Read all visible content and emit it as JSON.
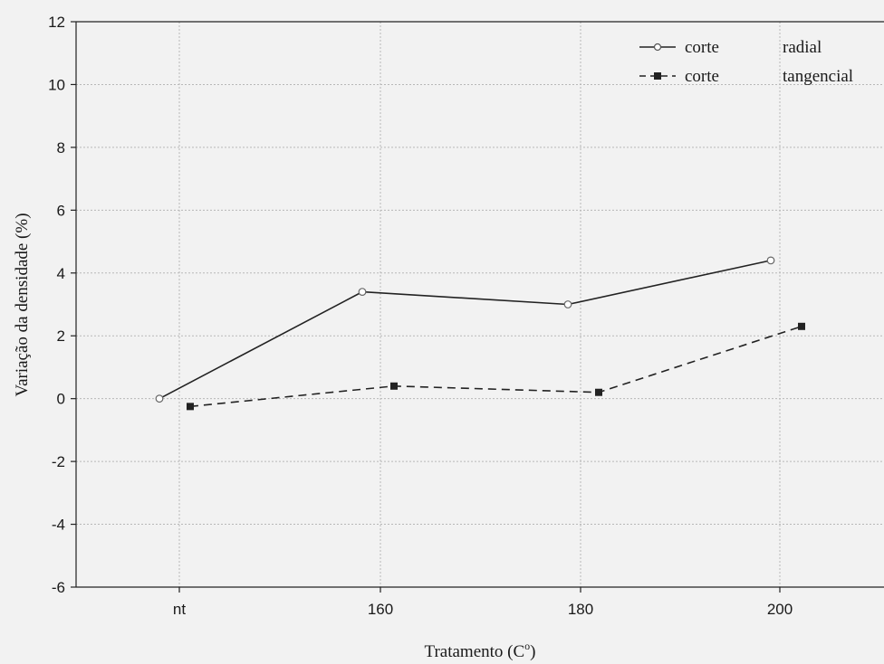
{
  "chart_data": {
    "type": "line",
    "xlabel": "Tratamento (C",
    "xlabel_sup": "o",
    "xlabel_close": ")",
    "ylabel": "Variação da densidade (%)",
    "ylim": [
      -6,
      12
    ],
    "yticks": [
      -6,
      -4,
      -2,
      0,
      2,
      4,
      6,
      8,
      10,
      12
    ],
    "categories": [
      "nt",
      "160",
      "180",
      "200"
    ],
    "grid": true,
    "legend": "top-right",
    "series": [
      {
        "name_left": "corte",
        "name_right": "radial",
        "style": "solid",
        "marker": "circle",
        "color": "#222222",
        "values": [
          0.0,
          3.4,
          3.0,
          4.4
        ]
      },
      {
        "name_left": "corte",
        "name_right": "tangencial",
        "style": "dashed",
        "marker": "square",
        "color": "#222222",
        "values": [
          -0.25,
          0.4,
          0.2,
          2.3
        ]
      }
    ]
  }
}
